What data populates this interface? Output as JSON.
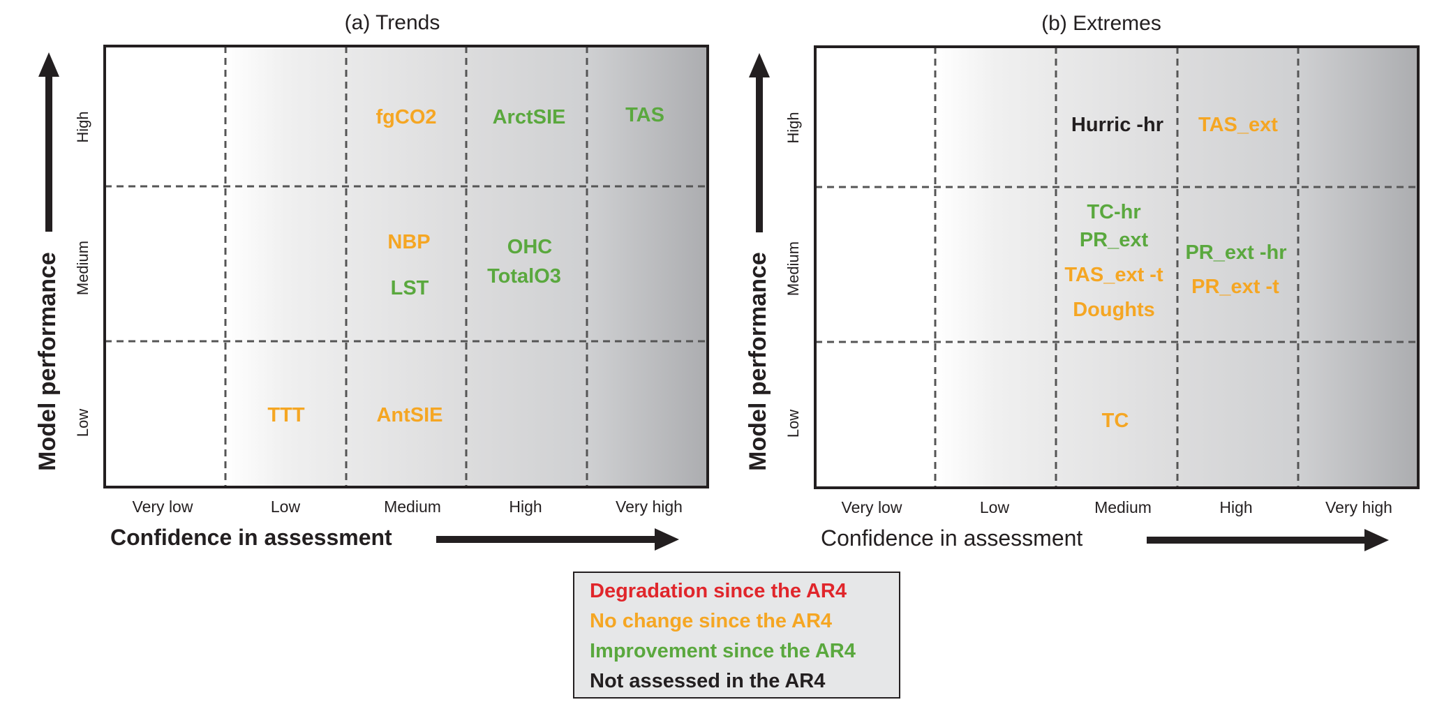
{
  "colors": {
    "degradation": "#e0262b",
    "no_change": "#f5a623",
    "improvement": "#5aa83e",
    "not_assessed": "#231f20",
    "frame": "#231f20",
    "grid": "#555555",
    "legend_bg": "#e6e7e8"
  },
  "legend": {
    "items": [
      {
        "label": "Degradation since the AR4",
        "status": "degradation"
      },
      {
        "label": "No change since the AR4",
        "status": "no_change"
      },
      {
        "label": "Improvement since the AR4",
        "status": "improvement"
      },
      {
        "label": "Not assessed in the AR4",
        "status": "not_assessed"
      }
    ]
  },
  "chart_data": [
    {
      "type": "table",
      "title": "(a) Trends",
      "xlabel": "Confidence in assessment",
      "ylabel": "Model performance",
      "x_categories": [
        "Very low",
        "Low",
        "Medium",
        "High",
        "Very high"
      ],
      "y_categories": [
        "Low",
        "Medium",
        "High"
      ],
      "entries": [
        {
          "label": "fgCO2",
          "x": "Medium",
          "y": "High",
          "status": "no_change"
        },
        {
          "label": "ArctSIE",
          "x": "High",
          "y": "High",
          "status": "improvement"
        },
        {
          "label": "TAS",
          "x": "Very high",
          "y": "High",
          "status": "improvement"
        },
        {
          "label": "NBP",
          "x": "Medium",
          "y": "Medium",
          "status": "no_change"
        },
        {
          "label": "LST",
          "x": "Medium",
          "y": "Medium",
          "status": "improvement"
        },
        {
          "label": "OHC",
          "x": "High",
          "y": "Medium",
          "status": "improvement"
        },
        {
          "label": "TotalO3",
          "x": "High",
          "y": "Medium",
          "status": "improvement"
        },
        {
          "label": "TTT",
          "x": "Low",
          "y": "Low",
          "status": "no_change"
        },
        {
          "label": "AntSIE",
          "x": "Medium",
          "y": "Low",
          "status": "no_change"
        }
      ]
    },
    {
      "type": "table",
      "title": "(b) Extremes",
      "xlabel": "Confidence in assessment",
      "ylabel": "Model performance",
      "x_categories": [
        "Very low",
        "Low",
        "Medium",
        "High",
        "Very high"
      ],
      "y_categories": [
        "Low",
        "Medium",
        "High"
      ],
      "entries": [
        {
          "label": "Hurric -hr",
          "x": "Medium",
          "y": "High",
          "status": "not_assessed"
        },
        {
          "label": "TAS_ext",
          "x": "High",
          "y": "High",
          "status": "no_change"
        },
        {
          "label": "TC-hr",
          "x": "Medium",
          "y": "Medium",
          "status": "improvement"
        },
        {
          "label": "PR_ext",
          "x": "Medium",
          "y": "Medium",
          "status": "improvement"
        },
        {
          "label": "TAS_ext -t",
          "x": "Medium",
          "y": "Medium",
          "status": "no_change"
        },
        {
          "label": "Doughts",
          "x": "Medium",
          "y": "Medium",
          "status": "no_change"
        },
        {
          "label": "PR_ext -hr",
          "x": "High",
          "y": "Medium",
          "status": "improvement"
        },
        {
          "label": "PR_ext -t",
          "x": "High",
          "y": "Medium",
          "status": "no_change"
        },
        {
          "label": "TC",
          "x": "Medium",
          "y": "Low",
          "status": "no_change"
        }
      ]
    }
  ]
}
